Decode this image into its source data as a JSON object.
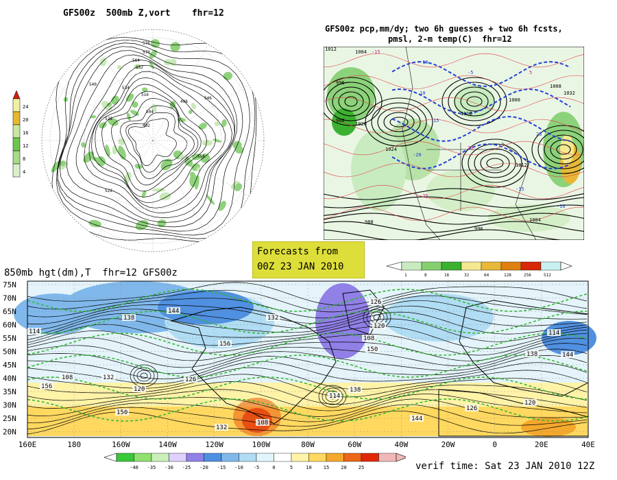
{
  "titles": {
    "top_left": "GFS00z  500mb Z,vort    fhr=12",
    "top_right_1": "GFS00z pcp,mm/dy; two 6h guesses + two 6h fcsts,",
    "top_right_2": "pmsl, 2-m temp(C)  fhr=12",
    "bottom": "850mb hgt(dm),T  fhr=12 GFS00z"
  },
  "forecast_box": {
    "line1": "Forecasts from",
    "line2": "00Z 23 JAN 2010"
  },
  "verif_time": "verif time: Sat 23 JAN 2010 12Z",
  "vort_scale": {
    "labels": [
      "24",
      "20",
      "16",
      "12",
      "8",
      "4"
    ],
    "colors": [
      "#f0f0a0",
      "#e6b830",
      "#c8e8a0",
      "#6cc84c",
      "#a8dc88",
      "#d8f0c8"
    ],
    "arrow_color": "#d02010"
  },
  "precip_scale": {
    "labels": [
      "1",
      "8",
      "16",
      "32",
      "64",
      "128",
      "256",
      "512"
    ],
    "colors": [
      "#c8ecc0",
      "#86d070",
      "#3cb030",
      "#f4e890",
      "#e8b838",
      "#e08010",
      "#d82808",
      "#c8f0f0"
    ]
  },
  "temp_scale": {
    "labels": [
      "-40",
      "-35",
      "-30",
      "-25",
      "-20",
      "-15",
      "-10",
      "-5",
      "0",
      "5",
      "10",
      "15",
      "20",
      "25"
    ],
    "colors": [
      "#38c838",
      "#90e070",
      "#c8f0b8",
      "#e0d0ff",
      "#9080e8",
      "#5090e0",
      "#80b8ec",
      "#b0dcf4",
      "#e0f6fc",
      "#ffffff",
      "#fff3a8",
      "#ffd860",
      "#f4a82c",
      "#ec6818",
      "#e02808",
      "#f0b8b8"
    ]
  },
  "lat_labels": [
    "75N",
    "70N",
    "65N",
    "60N",
    "55N",
    "50N",
    "45N",
    "40N",
    "35N",
    "30N",
    "25N",
    "20N"
  ],
  "lon_labels": [
    "160E",
    "180",
    "160W",
    "140W",
    "120W",
    "100W",
    "80W",
    "60W",
    "40W",
    "20W",
    "0",
    "20E",
    "40E"
  ],
  "contour_labels_500": [
    "576",
    "570",
    "564",
    "552",
    "534",
    "540",
    "516",
    "528",
    "504",
    "492",
    "498",
    "546",
    "558",
    "522"
  ],
  "contour_labels_850": [
    "114",
    "138",
    "144",
    "132",
    "126",
    "120",
    "108",
    "156",
    "150"
  ],
  "pmsl_labels": [
    "1012",
    "1004",
    "996",
    "988",
    "1020",
    "1024",
    "1016",
    "1000",
    "1008",
    "1032"
  ],
  "temp_labels": [
    "-15",
    "-10",
    "-5",
    "5",
    "10",
    "15",
    "20",
    "25",
    "-20",
    "-25"
  ]
}
